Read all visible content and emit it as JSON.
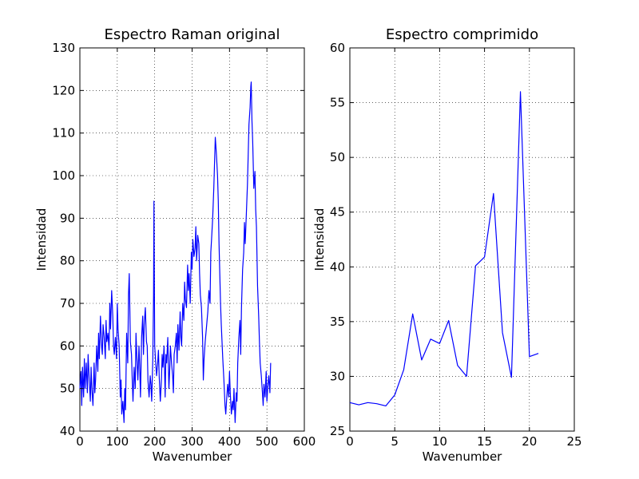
{
  "chart_data": [
    {
      "type": "line",
      "title": "Espectro Raman original",
      "xlabel": "Wavenumber",
      "ylabel": "Intensidad",
      "xlim": [
        0,
        600
      ],
      "ylim": [
        40,
        130
      ],
      "xticks": [
        "0",
        "100",
        "200",
        "300",
        "400",
        "500",
        "600"
      ],
      "yticks": [
        "40",
        "50",
        "60",
        "70",
        "80",
        "90",
        "100",
        "110",
        "120",
        "130"
      ],
      "grid": true,
      "color": "#0000ff",
      "series": [
        {
          "x": [
            0,
            3,
            5,
            7,
            10,
            12,
            14,
            17,
            20,
            22,
            25,
            28,
            30,
            32,
            35,
            38,
            40,
            42,
            45,
            48,
            50,
            52,
            55,
            58,
            60,
            62,
            65,
            68,
            70,
            72,
            75,
            78,
            80,
            82,
            85,
            88,
            90,
            92,
            95,
            98,
            100,
            102,
            105,
            108,
            110,
            112,
            115,
            118,
            120,
            122,
            125,
            128,
            130,
            132,
            135,
            138,
            140,
            142,
            145,
            148,
            150,
            152,
            155,
            158,
            160,
            162,
            165,
            168,
            170,
            172,
            175,
            178,
            180,
            182,
            185,
            188,
            190,
            192,
            195,
            197,
            198,
            200,
            202,
            205,
            208,
            210,
            212,
            215,
            218,
            220,
            222,
            225,
            228,
            230,
            232,
            235,
            238,
            240,
            242,
            245,
            248,
            250,
            252,
            255,
            258,
            260,
            262,
            265,
            268,
            270,
            272,
            275,
            278,
            280,
            282,
            285,
            288,
            290,
            292,
            295,
            298,
            300,
            302,
            305,
            308,
            310,
            312,
            315,
            318,
            320,
            322,
            325,
            328,
            330,
            332,
            335,
            338,
            340,
            342,
            345,
            348,
            350,
            352,
            355,
            358,
            360,
            362,
            365,
            368,
            370,
            372,
            374,
            376,
            378,
            380,
            382,
            385,
            388,
            390,
            392,
            395,
            398,
            400,
            402,
            405,
            408,
            410,
            412,
            415,
            418,
            420,
            422,
            425,
            428,
            430,
            432,
            435,
            438,
            440,
            442,
            445,
            448,
            450,
            452,
            455,
            457,
            458,
            460,
            462,
            465,
            468,
            470,
            472,
            475,
            478,
            480,
            482,
            485,
            488,
            490,
            492,
            495,
            498,
            500,
            502,
            505,
            508,
            510
          ],
          "y": [
            50,
            54,
            46,
            55,
            48,
            57,
            50,
            56,
            49,
            58,
            52,
            47,
            55,
            50,
            46,
            56,
            49,
            52,
            60,
            54,
            63,
            57,
            67,
            60,
            58,
            65,
            62,
            57,
            66,
            61,
            63,
            59,
            70,
            64,
            73,
            67,
            60,
            58,
            62,
            57,
            70,
            64,
            60,
            48,
            52,
            44,
            47,
            42,
            50,
            45,
            63,
            56,
            72,
            77,
            61,
            58,
            52,
            47,
            55,
            50,
            63,
            58,
            52,
            60,
            55,
            48,
            62,
            67,
            58,
            65,
            69,
            61,
            60,
            52,
            48,
            53,
            51,
            47,
            57,
            72,
            94,
            60,
            57,
            53,
            56,
            59,
            53,
            47,
            52,
            58,
            55,
            60,
            48,
            58,
            56,
            62,
            50,
            54,
            60,
            56,
            53,
            49,
            58,
            60,
            63,
            56,
            65,
            59,
            68,
            62,
            60,
            70,
            66,
            75,
            71,
            69,
            79,
            73,
            77,
            70,
            82,
            78,
            85,
            81,
            83,
            88,
            80,
            86,
            84,
            77,
            72,
            69,
            62,
            52,
            57,
            61,
            64,
            66,
            68,
            73,
            70,
            82,
            85,
            90,
            97,
            103,
            109,
            105,
            100,
            94,
            84,
            77,
            70,
            65,
            61,
            57,
            52,
            46,
            44,
            47,
            51,
            48,
            54,
            49,
            44,
            47,
            45,
            50,
            42,
            49,
            47,
            56,
            62,
            66,
            58,
            69,
            78,
            82,
            89,
            84,
            91,
            98,
            105,
            112,
            116,
            121,
            122,
            113,
            108,
            97,
            101,
            92,
            88,
            74,
            67,
            61,
            56,
            53,
            49,
            46,
            51,
            48,
            54,
            47,
            50,
            53,
            49,
            56
          ]
        }
      ]
    },
    {
      "type": "line",
      "title": "Espectro comprimido",
      "xlabel": "Wavenumber",
      "ylabel": "Intensidad",
      "xlim": [
        0,
        25
      ],
      "ylim": [
        25,
        60
      ],
      "xticks": [
        "0",
        "5",
        "10",
        "15",
        "20",
        "25"
      ],
      "yticks": [
        "25",
        "30",
        "35",
        "40",
        "45",
        "50",
        "55",
        "60"
      ],
      "grid": true,
      "color": "#0000ff",
      "series": [
        {
          "x": [
            0,
            1,
            2,
            3,
            4,
            5,
            6,
            7,
            8,
            9,
            10,
            11,
            12,
            13,
            14,
            15,
            16,
            17,
            18,
            19,
            20,
            21
          ],
          "y": [
            27.6,
            27.4,
            27.6,
            27.5,
            27.3,
            28.3,
            30.6,
            35.7,
            31.5,
            33.4,
            33.0,
            35.1,
            31.0,
            30.0,
            40.1,
            40.9,
            46.7,
            34.0,
            29.9,
            56.0,
            31.8,
            32.1
          ]
        }
      ]
    }
  ]
}
